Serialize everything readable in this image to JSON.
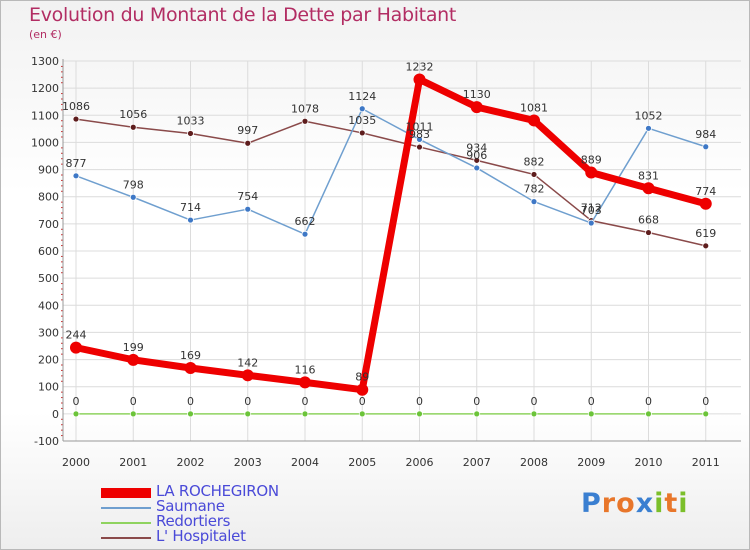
{
  "title": "Evolution du Montant de la Dette par Habitant",
  "subtitle": "(en €)",
  "brand": {
    "text": "Proxiti",
    "letters": [
      {
        "ch": "P",
        "color": "#3a7fd1"
      },
      {
        "ch": "r",
        "color": "#e8762a"
      },
      {
        "ch": "o",
        "color": "#e8762a"
      },
      {
        "ch": "x",
        "color": "#3a7fd1"
      },
      {
        "ch": "i",
        "color": "#7bbf2a"
      },
      {
        "ch": "t",
        "color": "#e8762a"
      },
      {
        "ch": "i",
        "color": "#7bbf2a"
      }
    ]
  },
  "chart_data": {
    "type": "line",
    "title": "Evolution du Montant de la Dette par Habitant",
    "subtitle": "(en €)",
    "x": [
      "2000",
      "2001",
      "2002",
      "2003",
      "2004",
      "2005",
      "2006",
      "2007",
      "2008",
      "2009",
      "2010",
      "2011"
    ],
    "ylim": [
      -100,
      1300
    ],
    "yticks": [
      -100,
      0,
      100,
      200,
      300,
      400,
      500,
      600,
      700,
      800,
      900,
      1000,
      1100,
      1200,
      1300
    ],
    "grid": true,
    "legend_position": "bottom-left",
    "series": [
      {
        "name": "LA ROCHEGIRON",
        "color": "#ee0000",
        "line_width": 7,
        "marker_fill": "#ee0000",
        "marker_size": 6,
        "values": [
          244,
          199,
          169,
          142,
          116,
          89,
          1232,
          1130,
          1081,
          889,
          831,
          774
        ]
      },
      {
        "name": "Saumane",
        "color": "#6f9fcf",
        "line_width": 1.5,
        "marker_fill": "#3e78c6",
        "marker_size": 3,
        "values": [
          877,
          798,
          714,
          754,
          662,
          1124,
          1011,
          906,
          782,
          703,
          1052,
          984
        ]
      },
      {
        "name": "Redortiers",
        "color": "#8fd35f",
        "line_width": 1.5,
        "marker_fill": "#6cc43a",
        "marker_size": 3,
        "values": [
          0,
          0,
          0,
          0,
          0,
          0,
          0,
          0,
          0,
          0,
          0,
          0
        ]
      },
      {
        "name": "L' Hospitalet",
        "color": "#8a4a4a",
        "line_width": 1.5,
        "marker_fill": "#5e1d1d",
        "marker_size": 3,
        "values": [
          1086,
          1056,
          1033,
          997,
          1078,
          1035,
          983,
          934,
          882,
          712,
          668,
          619
        ]
      }
    ]
  }
}
